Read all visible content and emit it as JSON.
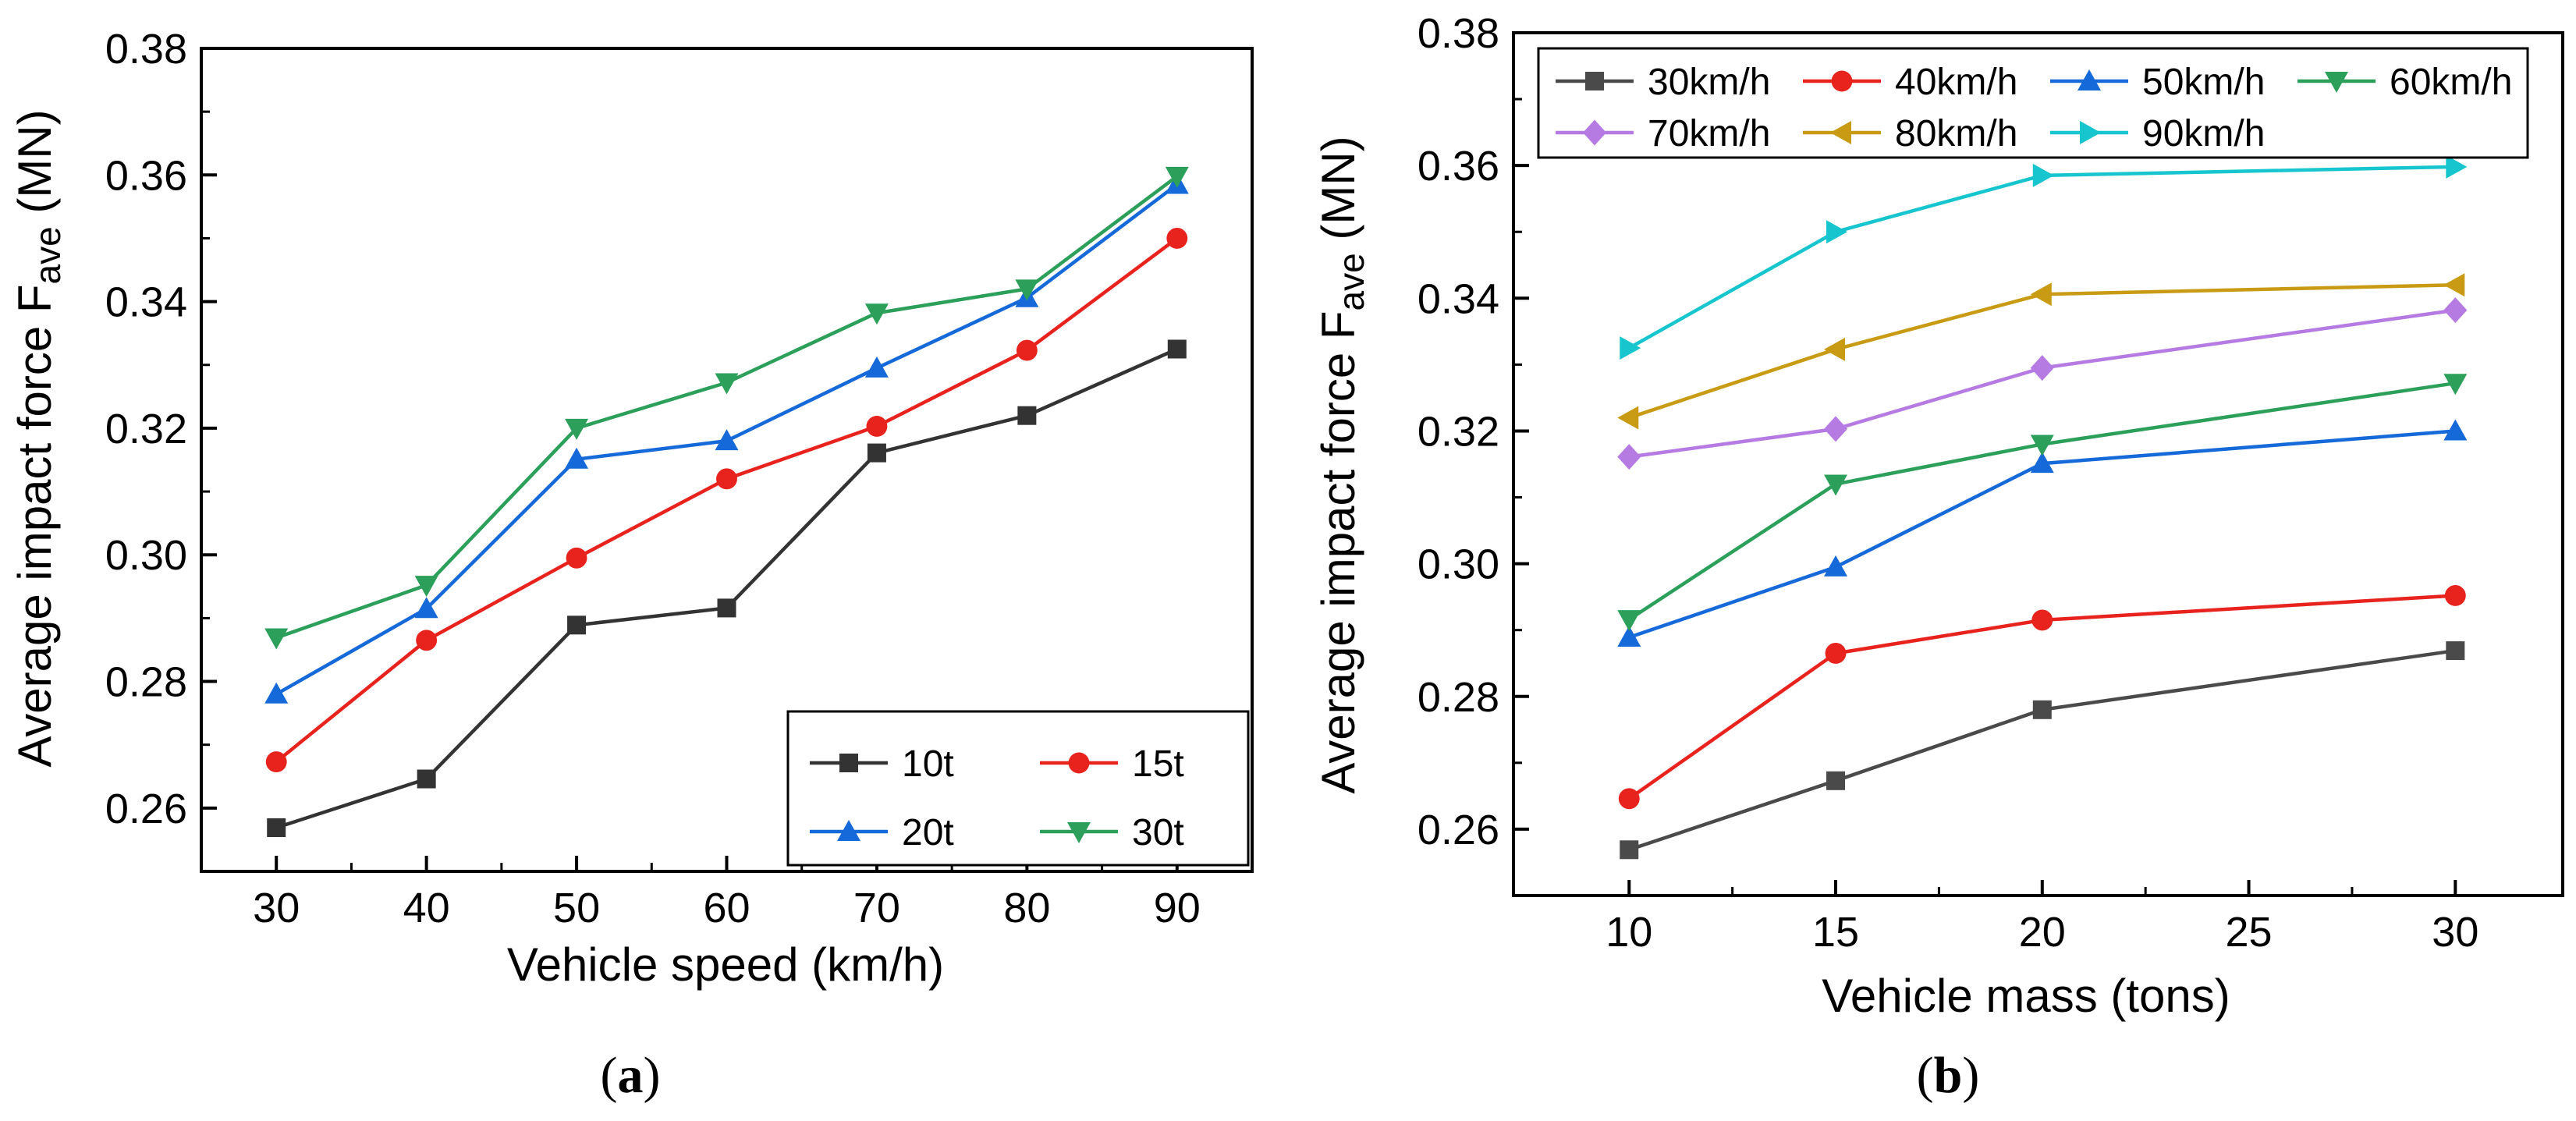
{
  "chart_data": [
    {
      "panel": "(a)",
      "panel_letter": "a",
      "type": "line",
      "title": "",
      "xlabel": "Vehicle speed (km/h)",
      "ylabel": "Average impact force F",
      "ylabel_sub": "ave",
      "ylabel_unit": " (MN)",
      "x": [
        30,
        40,
        50,
        60,
        70,
        80,
        90
      ],
      "xlim": [
        25,
        95
      ],
      "ylim": [
        0.25,
        0.38
      ],
      "xticks": [
        30,
        40,
        50,
        60,
        70,
        80,
        90
      ],
      "yticks": [
        0.26,
        0.28,
        0.3,
        0.32,
        0.34,
        0.36,
        0.38
      ],
      "ytick_labels": [
        "0.26",
        "0.28",
        "0.30",
        "0.32",
        "0.34",
        "0.36",
        "0.38"
      ],
      "legend_position": "bottom-right",
      "legend_columns": 2,
      "series": [
        {
          "name": "10t",
          "color": "#333333",
          "marker": "square",
          "values": [
            0.2569,
            0.2646,
            0.2889,
            0.2916,
            0.3161,
            0.322,
            0.3325
          ]
        },
        {
          "name": "15t",
          "color": "#e8231e",
          "marker": "circle",
          "values": [
            0.2673,
            0.2865,
            0.2995,
            0.312,
            0.3203,
            0.3323,
            0.35
          ]
        },
        {
          "name": "20t",
          "color": "#1669d8",
          "marker": "triangle-up",
          "values": [
            0.278,
            0.2915,
            0.3151,
            0.318,
            0.3295,
            0.3406,
            0.3585
          ]
        },
        {
          "name": "30t",
          "color": "#2ca05a",
          "marker": "triangle-down",
          "values": [
            0.2869,
            0.2952,
            0.32,
            0.3272,
            0.3382,
            0.342,
            0.3598
          ]
        }
      ]
    },
    {
      "panel": "(b)",
      "panel_letter": "b",
      "type": "line",
      "title": "",
      "xlabel": "Vehicle mass (tons)",
      "ylabel": "Average impact force F",
      "ylabel_sub": "ave",
      "ylabel_unit": " (MN)",
      "x": [
        10,
        15,
        20,
        30
      ],
      "xlim": [
        7.2,
        32.6
      ],
      "ylim": [
        0.25,
        0.38
      ],
      "xticks": [
        10,
        15,
        20,
        25,
        30
      ],
      "yticks": [
        0.26,
        0.28,
        0.3,
        0.32,
        0.34,
        0.36,
        0.38
      ],
      "ytick_labels": [
        "0.26",
        "0.28",
        "0.30",
        "0.32",
        "0.34",
        "0.36",
        "0.38"
      ],
      "legend_position": "top",
      "legend_columns": 4,
      "series": [
        {
          "name": "30km/h",
          "color": "#4a4a4a",
          "marker": "square",
          "values": [
            0.2569,
            0.2673,
            0.278,
            0.2869
          ]
        },
        {
          "name": "40km/h",
          "color": "#e8231e",
          "marker": "circle",
          "values": [
            0.2646,
            0.2865,
            0.2915,
            0.2952
          ]
        },
        {
          "name": "50km/h",
          "color": "#1669d8",
          "marker": "triangle-up",
          "values": [
            0.2889,
            0.2995,
            0.3151,
            0.32
          ]
        },
        {
          "name": "60km/h",
          "color": "#2ca05a",
          "marker": "triangle-down",
          "values": [
            0.2916,
            0.312,
            0.318,
            0.3272
          ]
        },
        {
          "name": "70km/h",
          "color": "#b57be3",
          "marker": "diamond",
          "values": [
            0.3161,
            0.3203,
            0.3295,
            0.3382
          ]
        },
        {
          "name": "80km/h",
          "color": "#c99a14",
          "marker": "triangle-left",
          "values": [
            0.322,
            0.3323,
            0.3406,
            0.342
          ]
        },
        {
          "name": "90km/h",
          "color": "#17c5cf",
          "marker": "triangle-right",
          "values": [
            0.3325,
            0.35,
            0.3585,
            0.3598
          ]
        }
      ]
    }
  ]
}
